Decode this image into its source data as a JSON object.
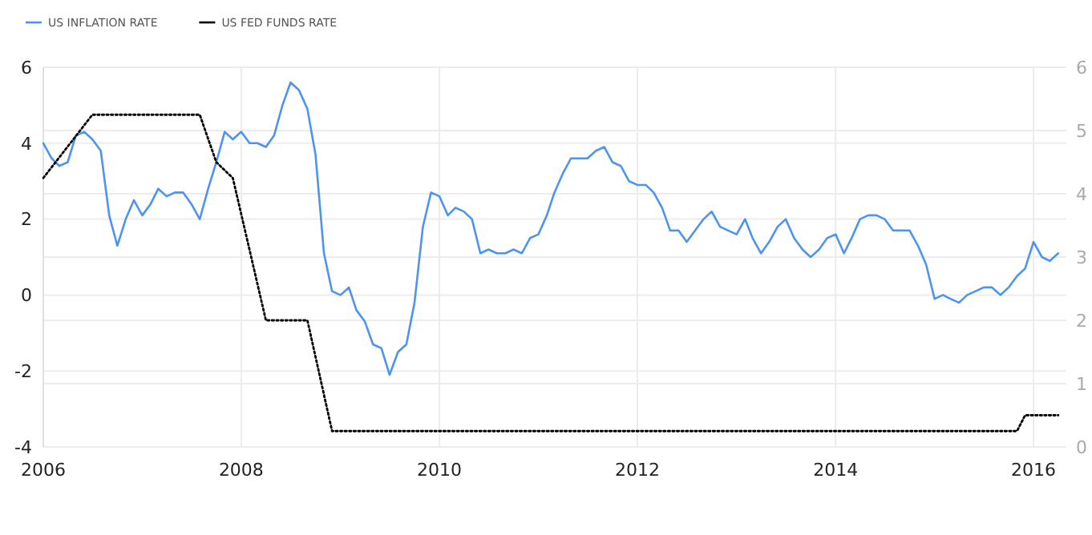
{
  "chart_data": {
    "type": "line",
    "xlim": [
      "2006-01",
      "2016-05"
    ],
    "xticks": [
      "2006",
      "2008",
      "2010",
      "2012",
      "2014",
      "2016"
    ],
    "ylim": [
      -4,
      6
    ],
    "yticks": [
      -4,
      -2,
      0,
      2,
      4,
      6
    ],
    "y2lim": [
      0,
      6
    ],
    "y2ticks": [
      0,
      1,
      2,
      3,
      4,
      5,
      6
    ],
    "grid": true,
    "legend": "top left",
    "marker": "none",
    "series": [
      {
        "name": "US INFLATION RATE",
        "color": "#4d94f0",
        "line_style": "solid",
        "x": [
          "2006-01",
          "2006-02",
          "2006-03",
          "2006-04",
          "2006-05",
          "2006-06",
          "2006-07",
          "2006-08",
          "2006-09",
          "2006-10",
          "2006-11",
          "2006-12",
          "2007-01",
          "2007-02",
          "2007-03",
          "2007-04",
          "2007-05",
          "2007-06",
          "2007-07",
          "2007-08",
          "2007-09",
          "2007-10",
          "2007-11",
          "2007-12",
          "2008-01",
          "2008-02",
          "2008-03",
          "2008-04",
          "2008-05",
          "2008-06",
          "2008-07",
          "2008-08",
          "2008-09",
          "2008-10",
          "2008-11",
          "2008-12",
          "2009-01",
          "2009-02",
          "2009-03",
          "2009-04",
          "2009-05",
          "2009-06",
          "2009-07",
          "2009-08",
          "2009-09",
          "2009-10",
          "2009-11",
          "2009-12",
          "2010-01",
          "2010-02",
          "2010-03",
          "2010-04",
          "2010-05",
          "2010-06",
          "2010-07",
          "2010-08",
          "2010-09",
          "2010-10",
          "2010-11",
          "2010-12",
          "2011-01",
          "2011-02",
          "2011-03",
          "2011-04",
          "2011-05",
          "2011-06",
          "2011-07",
          "2011-08",
          "2011-09",
          "2011-10",
          "2011-11",
          "2011-12",
          "2012-01",
          "2012-02",
          "2012-03",
          "2012-04",
          "2012-05",
          "2012-06",
          "2012-07",
          "2012-08",
          "2012-09",
          "2012-10",
          "2012-11",
          "2012-12",
          "2013-01",
          "2013-02",
          "2013-03",
          "2013-04",
          "2013-05",
          "2013-06",
          "2013-07",
          "2013-08",
          "2013-09",
          "2013-10",
          "2013-11",
          "2013-12",
          "2014-01",
          "2014-02",
          "2014-03",
          "2014-04",
          "2014-05",
          "2014-06",
          "2014-07",
          "2014-08",
          "2014-09",
          "2014-10",
          "2014-11",
          "2014-12",
          "2015-01",
          "2015-02",
          "2015-03",
          "2015-04",
          "2015-05",
          "2015-06",
          "2015-07",
          "2015-08",
          "2015-09",
          "2015-10",
          "2015-11",
          "2015-12",
          "2016-01",
          "2016-02",
          "2016-03",
          "2016-04"
        ],
        "values": [
          4.0,
          3.6,
          3.4,
          3.5,
          4.2,
          4.3,
          4.1,
          3.8,
          2.1,
          1.3,
          2.0,
          2.5,
          2.1,
          2.4,
          2.8,
          2.6,
          2.7,
          2.7,
          2.4,
          2.0,
          2.8,
          3.5,
          4.3,
          4.1,
          4.3,
          4.0,
          4.0,
          3.9,
          4.2,
          5.0,
          5.6,
          5.4,
          4.9,
          3.7,
          1.1,
          0.1,
          0.0,
          0.2,
          -0.4,
          -0.7,
          -1.3,
          -1.4,
          -2.1,
          -1.5,
          -1.3,
          -0.2,
          1.8,
          2.7,
          2.6,
          2.1,
          2.3,
          2.2,
          2.0,
          1.1,
          1.2,
          1.1,
          1.1,
          1.2,
          1.1,
          1.5,
          1.6,
          2.1,
          2.7,
          3.2,
          3.6,
          3.6,
          3.6,
          3.8,
          3.9,
          3.5,
          3.4,
          3.0,
          2.9,
          2.9,
          2.7,
          2.3,
          1.7,
          1.7,
          1.4,
          1.7,
          2.0,
          2.2,
          1.8,
          1.7,
          1.6,
          2.0,
          1.5,
          1.1,
          1.4,
          1.8,
          2.0,
          1.5,
          1.2,
          1.0,
          1.2,
          1.5,
          1.6,
          1.1,
          1.5,
          2.0,
          2.1,
          2.1,
          2.0,
          1.7,
          1.7,
          1.7,
          1.3,
          0.8,
          -0.1,
          0.0,
          -0.1,
          -0.2,
          0.0,
          0.1,
          0.2,
          0.2,
          0.0,
          0.2,
          0.5,
          0.7,
          1.4,
          1.0,
          0.9,
          1.1
        ]
      },
      {
        "name": "US FED FUNDS RATE",
        "color": "#000000",
        "line_style": "dotted",
        "axis": "y2",
        "x": [
          "2006-01",
          "2006-07",
          "2007-08",
          "2007-10",
          "2007-12",
          "2008-04",
          "2008-09",
          "2008-12",
          "2015-11",
          "2015-12",
          "2016-04"
        ],
        "values": [
          4.25,
          5.25,
          5.25,
          4.5,
          4.25,
          2.0,
          2.0,
          0.25,
          0.25,
          0.5,
          0.5
        ]
      }
    ]
  }
}
